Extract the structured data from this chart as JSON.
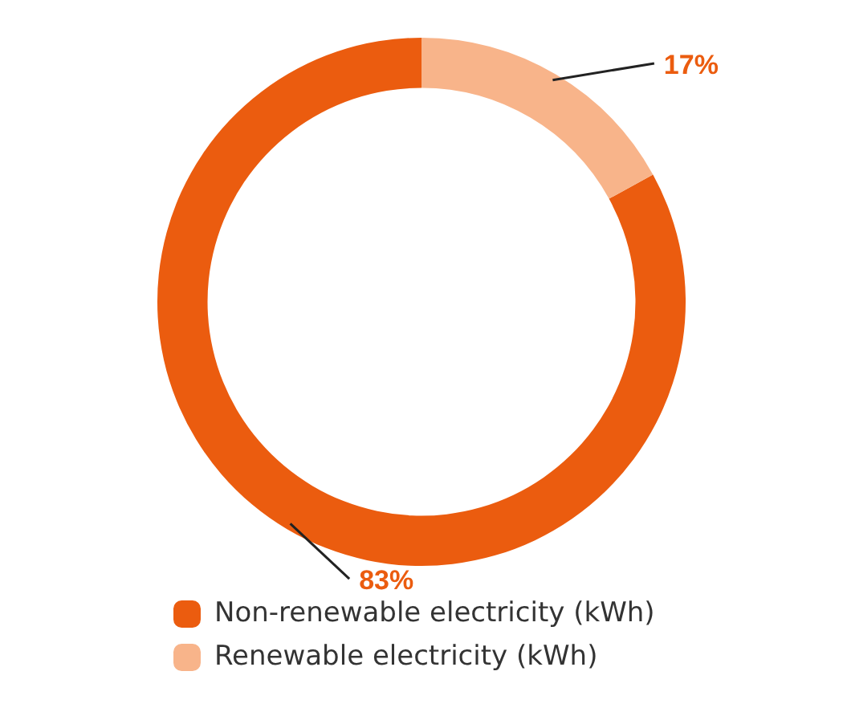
{
  "chart_data": {
    "type": "donut",
    "categories": [
      "Non-renewable electricity (kWh)",
      "Renewable electricity (kWh)"
    ],
    "values": [
      83,
      17
    ],
    "colors": [
      "#eb5c0f",
      "#f8b48a"
    ],
    "value_labels": [
      "83%",
      "17%"
    ],
    "legend": "bottom left"
  }
}
